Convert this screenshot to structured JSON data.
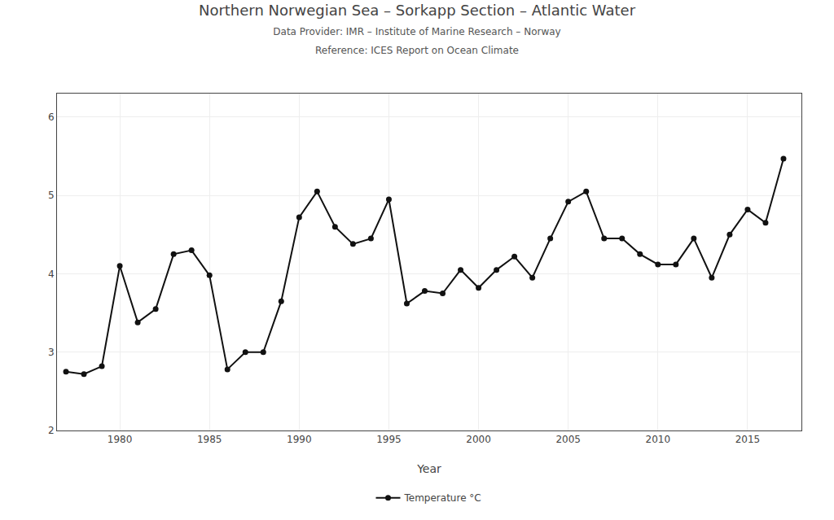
{
  "chart_data": {
    "type": "line",
    "title": "Northern Norwegian Sea – Sorkapp Section – Atlantic Water",
    "subtitle": [
      "Data Provider: IMR – Institute of Marine Research – Norway",
      "Reference: ICES Report on Ocean Climate"
    ],
    "xlabel": "Year",
    "x": [
      1977,
      1978,
      1979,
      1980,
      1981,
      1982,
      1983,
      1984,
      1985,
      1986,
      1987,
      1988,
      1989,
      1990,
      1991,
      1992,
      1993,
      1994,
      1995,
      1996,
      1997,
      1998,
      1999,
      2000,
      2001,
      2002,
      2003,
      2004,
      2005,
      2006,
      2007,
      2008,
      2009,
      2010,
      2011,
      2012,
      2013,
      2014,
      2015,
      2016,
      2017
    ],
    "series": [
      {
        "name": "Temperature °C",
        "color": "#111111",
        "marker": "circle",
        "values": [
          2.75,
          2.72,
          2.82,
          4.1,
          3.38,
          3.55,
          4.25,
          4.3,
          3.98,
          2.78,
          3.0,
          3.0,
          3.65,
          4.72,
          5.05,
          4.6,
          4.38,
          4.45,
          4.95,
          3.62,
          3.78,
          3.75,
          4.05,
          3.82,
          4.05,
          4.22,
          3.95,
          4.45,
          4.92,
          5.05,
          4.45,
          4.45,
          4.25,
          4.12,
          4.12,
          4.45,
          3.95,
          4.5,
          4.82,
          4.65,
          5.47
        ]
      }
    ],
    "xlim": [
      1976.5,
      2018
    ],
    "xticks": [
      1980,
      1985,
      1990,
      1995,
      2000,
      2005,
      2010,
      2015
    ],
    "ylim": [
      2.0,
      6.3
    ],
    "yticks": [
      2,
      3,
      4,
      5,
      6
    ],
    "grid": true,
    "legend": "bottom"
  }
}
